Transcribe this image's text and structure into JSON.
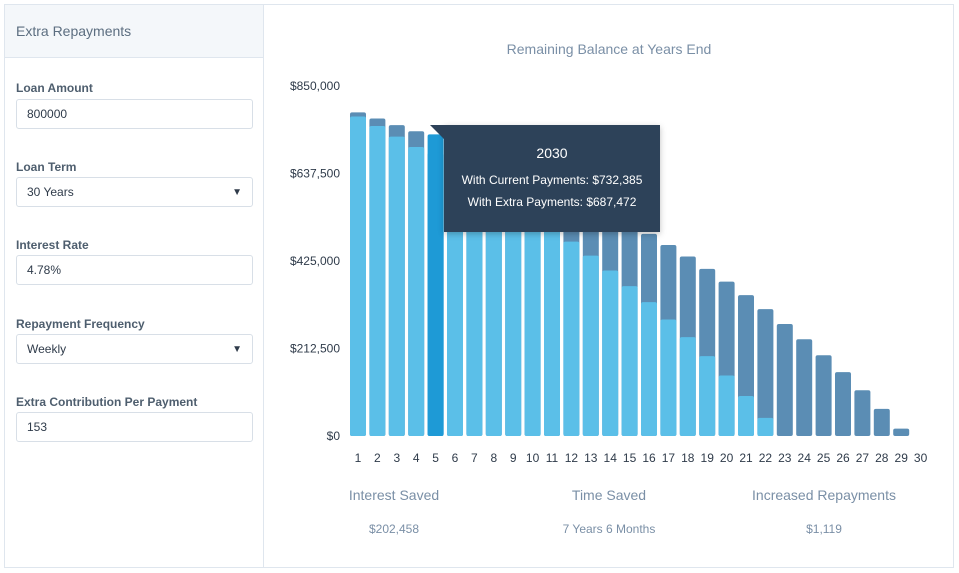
{
  "sidebar": {
    "title": "Extra Repayments",
    "loan_amount": {
      "label": "Loan Amount",
      "value": "800000"
    },
    "loan_term": {
      "label": "Loan Term",
      "value": "30 Years"
    },
    "interest_rate": {
      "label": "Interest Rate",
      "value": "4.78%"
    },
    "repayment_frequency": {
      "label": "Repayment Frequency",
      "value": "Weekly"
    },
    "extra_contribution": {
      "label": "Extra Contribution Per Payment",
      "value": "153"
    }
  },
  "chart": {
    "title": "Remaining Balance at Years End",
    "colors": {
      "current": "#5b8db4",
      "extra": "#5bbfe8",
      "highlight": "#1e9ad6"
    }
  },
  "tooltip": {
    "year": "2030",
    "current_line": "With Current Payments: $732,385",
    "extra_line": "With Extra Payments: $687,472"
  },
  "stats": {
    "interest_saved": {
      "label": "Interest Saved",
      "value": "$202,458"
    },
    "time_saved": {
      "label": "Time Saved",
      "value": "7 Years 6 Months"
    },
    "increased_repayments": {
      "label": "Increased Repayments",
      "value": "$1,119"
    }
  },
  "chart_data": {
    "type": "bar",
    "title": "Remaining Balance at Years End",
    "xlabel": "",
    "ylabel": "",
    "ylim": [
      0,
      850000
    ],
    "yticks": [
      "$0",
      "$212,500",
      "$425,000",
      "$637,500",
      "$850,000"
    ],
    "ytick_values": [
      0,
      212500,
      425000,
      637500,
      850000
    ],
    "categories": [
      "1",
      "2",
      "3",
      "4",
      "5",
      "6",
      "7",
      "8",
      "9",
      "10",
      "11",
      "12",
      "13",
      "14",
      "15",
      "16",
      "17",
      "18",
      "19",
      "20",
      "21",
      "22",
      "23",
      "24",
      "25",
      "26",
      "27",
      "28",
      "29",
      "30"
    ],
    "highlight_index": 4,
    "series": [
      {
        "name": "With Current Payments",
        "values": [
          786000,
          771000,
          755000,
          740000,
          732385,
          706000,
          688000,
          670000,
          651000,
          631000,
          610000,
          588000,
          565000,
          542000,
          517000,
          491000,
          464000,
          436000,
          406000,
          375000,
          342000,
          308000,
          272000,
          235000,
          196000,
          155000,
          111000,
          66000,
          18000,
          0
        ]
      },
      {
        "name": "With Extra Payments",
        "values": [
          776000,
          753000,
          727000,
          702000,
          687472,
          652000,
          624000,
          596000,
          567000,
          536000,
          505000,
          472000,
          438000,
          402000,
          364000,
          325000,
          283000,
          240000,
          194000,
          147000,
          97000,
          44000,
          0,
          0,
          0,
          0,
          0,
          0,
          0,
          0
        ]
      }
    ]
  }
}
